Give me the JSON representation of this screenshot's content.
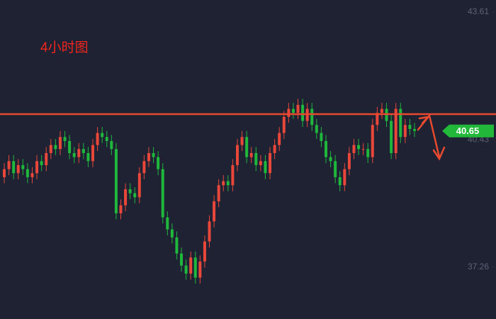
{
  "chart_data": {
    "type": "candlestick",
    "annotation": "4小时图",
    "up_color": "#e8473a",
    "down_color": "#1fb83c",
    "open": [
      39.5,
      39.7,
      39.9,
      39.6,
      39.8,
      39.7,
      39.5,
      39.6,
      39.9,
      39.8,
      40.1,
      40.3,
      40.2,
      40.5,
      40.4,
      40.1,
      40.0,
      40.2,
      40.1,
      39.9,
      40.3,
      40.6,
      40.5,
      40.4,
      40.2,
      38.6,
      38.8,
      39.2,
      39.1,
      39.0,
      39.6,
      39.9,
      40.1,
      40.0,
      39.7,
      38.5,
      38.2,
      38.0,
      37.6,
      37.3,
      37.1,
      37.5,
      37.0,
      37.4,
      37.9,
      38.4,
      38.9,
      39.3,
      39.4,
      39.3,
      39.8,
      40.3,
      40.5,
      40.0,
      40.1,
      39.8,
      39.9,
      39.6,
      40.1,
      40.3,
      40.6,
      41.0,
      41.2,
      41.1,
      41.3,
      40.9,
      41.2,
      40.8,
      40.6,
      40.4,
      40.0,
      39.9,
      39.5,
      39.3,
      39.7,
      40.1,
      40.3,
      40.2,
      40.2,
      40.0,
      40.8,
      41.1,
      41.2,
      40.9,
      40.1,
      41.2,
      40.5,
      40.8,
      40.7
    ],
    "high": [
      39.85,
      40.05,
      40.05,
      39.95,
      39.95,
      39.85,
      39.75,
      40.05,
      40.05,
      40.25,
      40.45,
      40.45,
      40.65,
      40.65,
      40.55,
      40.25,
      40.35,
      40.35,
      40.25,
      40.45,
      40.75,
      40.75,
      40.65,
      40.55,
      40.35,
      38.95,
      39.35,
      39.35,
      39.25,
      39.75,
      40.05,
      40.25,
      40.25,
      40.15,
      39.85,
      38.65,
      38.35,
      38.15,
      37.75,
      37.45,
      37.65,
      37.65,
      37.55,
      38.05,
      38.55,
      39.05,
      39.45,
      39.55,
      39.55,
      39.95,
      40.45,
      40.65,
      40.65,
      40.25,
      40.25,
      40.05,
      40.05,
      40.25,
      40.45,
      40.75,
      41.15,
      41.35,
      41.35,
      41.45,
      41.45,
      41.35,
      41.35,
      40.95,
      40.75,
      40.55,
      40.15,
      40.05,
      39.65,
      39.85,
      40.25,
      40.45,
      40.45,
      40.35,
      40.35,
      40.95,
      41.25,
      41.35,
      41.35,
      41.05,
      41.35,
      41.35,
      40.95,
      40.95,
      40.85
    ],
    "low": [
      39.35,
      39.55,
      39.45,
      39.45,
      39.55,
      39.35,
      39.35,
      39.45,
      39.65,
      39.65,
      39.95,
      40.05,
      40.05,
      40.25,
      39.95,
      39.85,
      39.85,
      39.95,
      39.75,
      39.75,
      40.15,
      40.35,
      40.25,
      40.05,
      38.45,
      38.45,
      38.65,
      38.95,
      38.85,
      38.85,
      39.45,
      39.75,
      39.85,
      39.55,
      38.35,
      38.05,
      37.85,
      37.45,
      37.15,
      36.95,
      36.95,
      36.85,
      36.85,
      37.25,
      37.75,
      38.25,
      38.75,
      39.15,
      39.15,
      39.15,
      39.65,
      40.15,
      39.85,
      39.85,
      39.65,
      39.65,
      39.45,
      39.45,
      39.95,
      40.15,
      40.45,
      40.85,
      40.95,
      40.95,
      40.75,
      40.75,
      40.65,
      40.45,
      40.25,
      39.85,
      39.75,
      39.35,
      39.15,
      39.15,
      39.55,
      39.95,
      40.05,
      40.05,
      39.85,
      39.85,
      40.65,
      40.95,
      40.75,
      39.95,
      39.95,
      40.35,
      40.35,
      40.55,
      40.5
    ],
    "close": [
      39.7,
      39.9,
      39.6,
      39.8,
      39.7,
      39.5,
      39.6,
      39.9,
      39.8,
      40.1,
      40.3,
      40.2,
      40.5,
      40.4,
      40.1,
      40.0,
      40.2,
      40.1,
      39.9,
      40.3,
      40.6,
      40.5,
      40.4,
      40.2,
      38.6,
      38.8,
      39.2,
      39.1,
      39.0,
      39.6,
      39.9,
      40.1,
      40.0,
      39.7,
      38.5,
      38.2,
      38.0,
      37.6,
      37.3,
      37.1,
      37.5,
      37.0,
      37.4,
      37.9,
      38.4,
      38.9,
      39.3,
      39.4,
      39.3,
      39.8,
      40.3,
      40.5,
      40.0,
      40.1,
      39.8,
      39.9,
      39.6,
      40.1,
      40.3,
      40.6,
      41.0,
      41.2,
      41.1,
      41.3,
      40.9,
      41.2,
      40.8,
      40.6,
      40.4,
      40.0,
      39.9,
      39.5,
      39.3,
      39.7,
      40.1,
      40.3,
      40.2,
      40.2,
      40.0,
      40.8,
      41.1,
      41.2,
      40.9,
      40.1,
      41.2,
      40.5,
      40.8,
      40.7,
      40.65
    ],
    "ylim": [
      35.97,
      43.91
    ],
    "yticks": [
      43.61,
      40.43,
      37.26
    ],
    "level": 41.07,
    "level_color": "#e84a2f"
  }
}
